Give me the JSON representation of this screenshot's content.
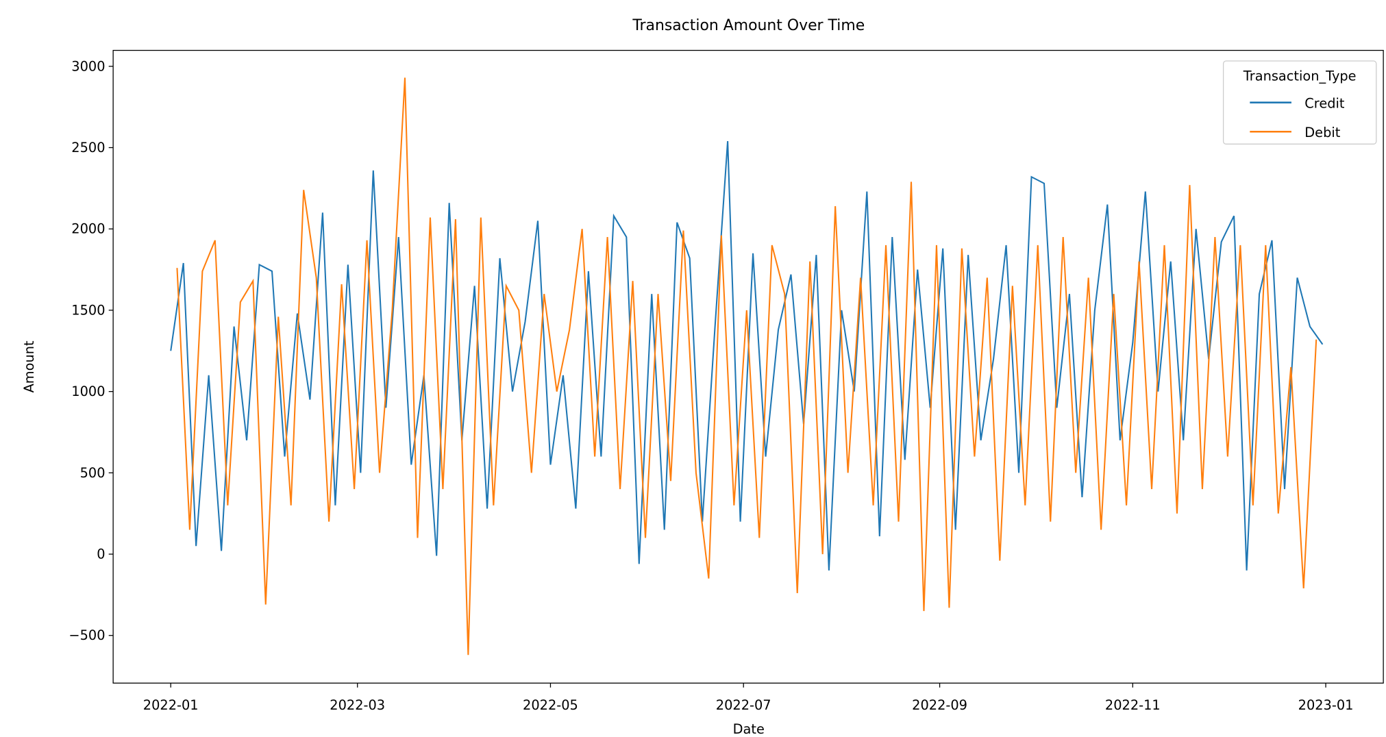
{
  "chart_data": {
    "type": "line",
    "title": "Transaction Amount Over Time",
    "x_label": "Date",
    "y_label": "Amount",
    "legend_title": "Transaction_Type",
    "legend_position": "upper right",
    "grid": false,
    "xlim": [
      -18.2,
      383.2
    ],
    "xticks": [
      {
        "value": 0,
        "label": "2022-01"
      },
      {
        "value": 59,
        "label": "2022-03"
      },
      {
        "value": 120,
        "label": "2022-05"
      },
      {
        "value": 181,
        "label": "2022-07"
      },
      {
        "value": 243,
        "label": "2022-09"
      },
      {
        "value": 304,
        "label": "2022-11"
      },
      {
        "value": 365,
        "label": "2023-01"
      }
    ],
    "ylim": [
      -793,
      3098
    ],
    "yticks": [
      {
        "value": -500,
        "label": "−500"
      },
      0,
      500,
      1000,
      1500,
      2000,
      2500,
      3000
    ],
    "series": [
      {
        "name": "Credit",
        "color": "#1f77b4",
        "x": [
          0,
          4,
          8,
          12,
          16,
          20,
          24,
          28,
          32,
          36,
          40,
          44,
          48,
          52,
          56,
          60,
          64,
          68,
          72,
          76,
          80,
          84,
          88,
          92,
          96,
          100,
          104,
          108,
          112,
          116,
          120,
          124,
          128,
          132,
          136,
          140,
          144,
          148,
          152,
          156,
          160,
          164,
          168,
          172,
          176,
          180,
          184,
          188,
          192,
          196,
          200,
          204,
          208,
          212,
          216,
          220,
          224,
          228,
          232,
          236,
          240,
          244,
          248,
          252,
          256,
          260,
          264,
          268,
          272,
          276,
          280,
          284,
          288,
          292,
          296,
          300,
          304,
          308,
          312,
          316,
          320,
          324,
          328,
          332,
          336,
          340,
          344,
          348,
          352,
          356,
          360,
          364
        ],
        "values": [
          1250,
          1790,
          50,
          1100,
          20,
          1400,
          700,
          1780,
          1740,
          600,
          1480,
          950,
          2100,
          300,
          1780,
          500,
          2360,
          900,
          1950,
          550,
          1100,
          -10,
          2160,
          700,
          1650,
          280,
          1820,
          1000,
          1430,
          2050,
          550,
          1100,
          280,
          1740,
          600,
          2080,
          1950,
          -60,
          1600,
          150,
          2040,
          1820,
          200,
          1400,
          2540,
          200,
          1850,
          600,
          1380,
          1720,
          800,
          1840,
          -100,
          1500,
          1000,
          2230,
          110,
          1950,
          580,
          1750,
          900,
          1880,
          150,
          1840,
          700,
          1200,
          1900,
          500,
          2320,
          2280,
          900,
          1600,
          350,
          1500,
          2150,
          700,
          1300,
          2230,
          1000,
          1800,
          700,
          2000,
          1200,
          1920,
          2080,
          -100,
          1600,
          1930,
          400,
          1700,
          1400,
          1290
        ]
      },
      {
        "name": "Debit",
        "color": "#ff7f0e",
        "x": [
          2,
          6,
          10,
          14,
          18,
          22,
          26,
          30,
          34,
          38,
          42,
          46,
          50,
          54,
          58,
          62,
          66,
          70,
          74,
          78,
          82,
          86,
          90,
          94,
          98,
          102,
          106,
          110,
          114,
          118,
          122,
          126,
          130,
          134,
          138,
          142,
          146,
          150,
          154,
          158,
          162,
          166,
          170,
          174,
          178,
          182,
          186,
          190,
          194,
          198,
          202,
          206,
          210,
          214,
          218,
          222,
          226,
          230,
          234,
          238,
          242,
          246,
          250,
          254,
          258,
          262,
          266,
          270,
          274,
          278,
          282,
          286,
          290,
          294,
          298,
          302,
          306,
          310,
          314,
          318,
          322,
          326,
          330,
          334,
          338,
          342,
          346,
          350,
          354,
          358,
          362
        ],
        "values": [
          1760,
          150,
          1740,
          1930,
          300,
          1550,
          1680,
          -310,
          1460,
          300,
          2240,
          1700,
          200,
          1660,
          400,
          1930,
          500,
          1500,
          2930,
          100,
          2070,
          400,
          2060,
          -620,
          2070,
          300,
          1650,
          1500,
          500,
          1600,
          1000,
          1380,
          2000,
          600,
          1950,
          400,
          1680,
          100,
          1600,
          450,
          1990,
          500,
          -150,
          1960,
          300,
          1500,
          100,
          1900,
          1600,
          -240,
          1800,
          0,
          2140,
          500,
          1700,
          300,
          1900,
          200,
          2290,
          -350,
          1900,
          -330,
          1880,
          600,
          1700,
          -40,
          1650,
          300,
          1900,
          200,
          1950,
          500,
          1700,
          150,
          1600,
          300,
          1800,
          400,
          1900,
          250,
          2270,
          400,
          1950,
          600,
          1900,
          300,
          1900,
          250,
          1150,
          -210,
          1320
        ]
      }
    ]
  }
}
